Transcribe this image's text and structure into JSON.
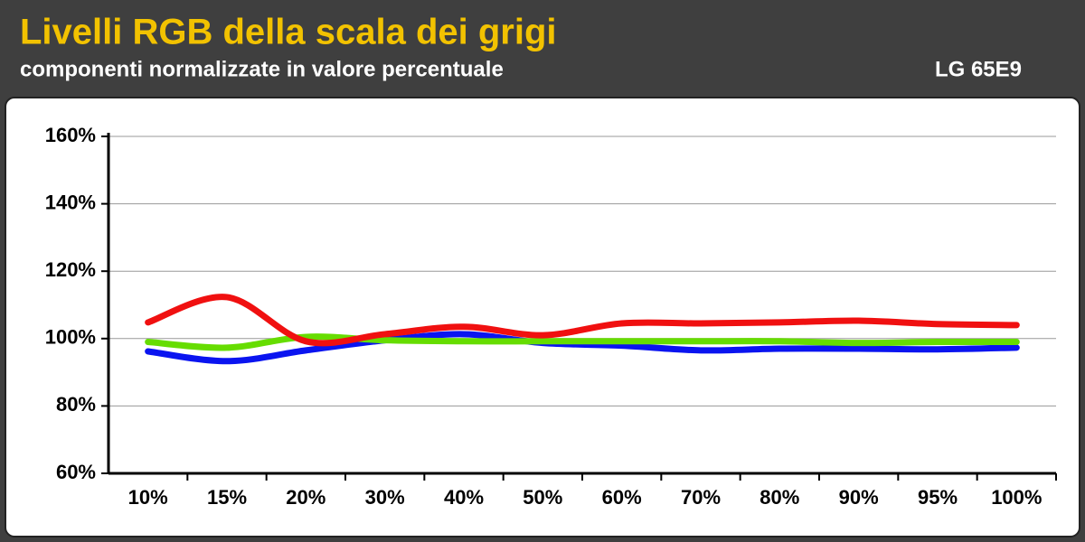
{
  "chart_data": {
    "type": "line",
    "title": "Livelli RGB della scala dei grigi",
    "subtitle": "componenti normalizzate in valore percentuale",
    "annotation": "LG 65E9",
    "categories": [
      "10%",
      "15%",
      "20%",
      "30%",
      "40%",
      "50%",
      "60%",
      "70%",
      "80%",
      "90%",
      "95%",
      "100%"
    ],
    "series": [
      {
        "color": "#0a14f0",
        "values": [
          96.2,
          93.3,
          96.5,
          99.5,
          101.3,
          98.7,
          97.9,
          96.5,
          97,
          97,
          96.8,
          97.3
        ]
      },
      {
        "color": "#66dd00",
        "values": [
          99,
          97.3,
          100.5,
          99.5,
          99.2,
          99.2,
          99.2,
          99.2,
          99.2,
          98.7,
          99,
          99
        ]
      },
      {
        "color": "#f01010",
        "values": [
          104.8,
          112.3,
          99.2,
          101.3,
          103.5,
          101,
          104.5,
          104.5,
          104.8,
          105.3,
          104.3,
          104
        ]
      }
    ],
    "ylim": [
      60,
      160
    ],
    "yticks": [
      {
        "value": 60,
        "label": "60%"
      },
      {
        "value": 80,
        "label": "80%"
      },
      {
        "value": 100,
        "label": "100%"
      },
      {
        "value": 120,
        "label": "120%"
      },
      {
        "value": 140,
        "label": "140%"
      },
      {
        "value": 160,
        "label": "160%"
      }
    ],
    "grid": true
  }
}
